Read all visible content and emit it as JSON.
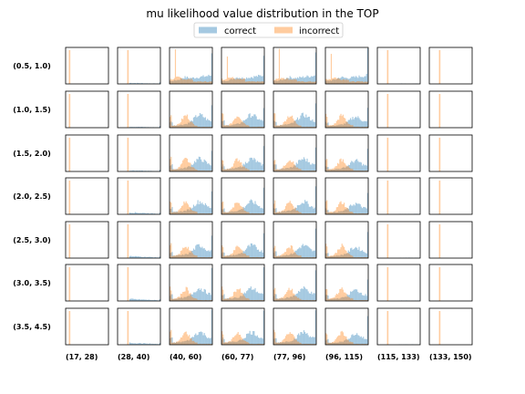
{
  "chart_data": {
    "type": "histogram-grid",
    "title": "mu likelihood value distribution in the TOP",
    "legend": {
      "placement": "top-center",
      "entries": [
        {
          "name": "correct",
          "color": "#1f77b4"
        },
        {
          "name": "incorrect",
          "color": "#ff7f0e"
        }
      ]
    },
    "row_labels": [
      "(0.5, 1.0)",
      "(1.0, 1.5)",
      "(1.5, 2.0)",
      "(2.0, 2.5)",
      "(2.5, 3.0)",
      "(3.0, 3.5)",
      "(3.5, 4.5)"
    ],
    "col_labels": [
      "(17, 28)",
      "(28, 40)",
      "(40, 60)",
      "(60, 77)",
      "(77, 96)",
      "(96, 115)",
      "(115, 133)",
      "(133, 150)"
    ],
    "series_alpha": 0.4,
    "grid": false,
    "axes_ticks": false
  }
}
